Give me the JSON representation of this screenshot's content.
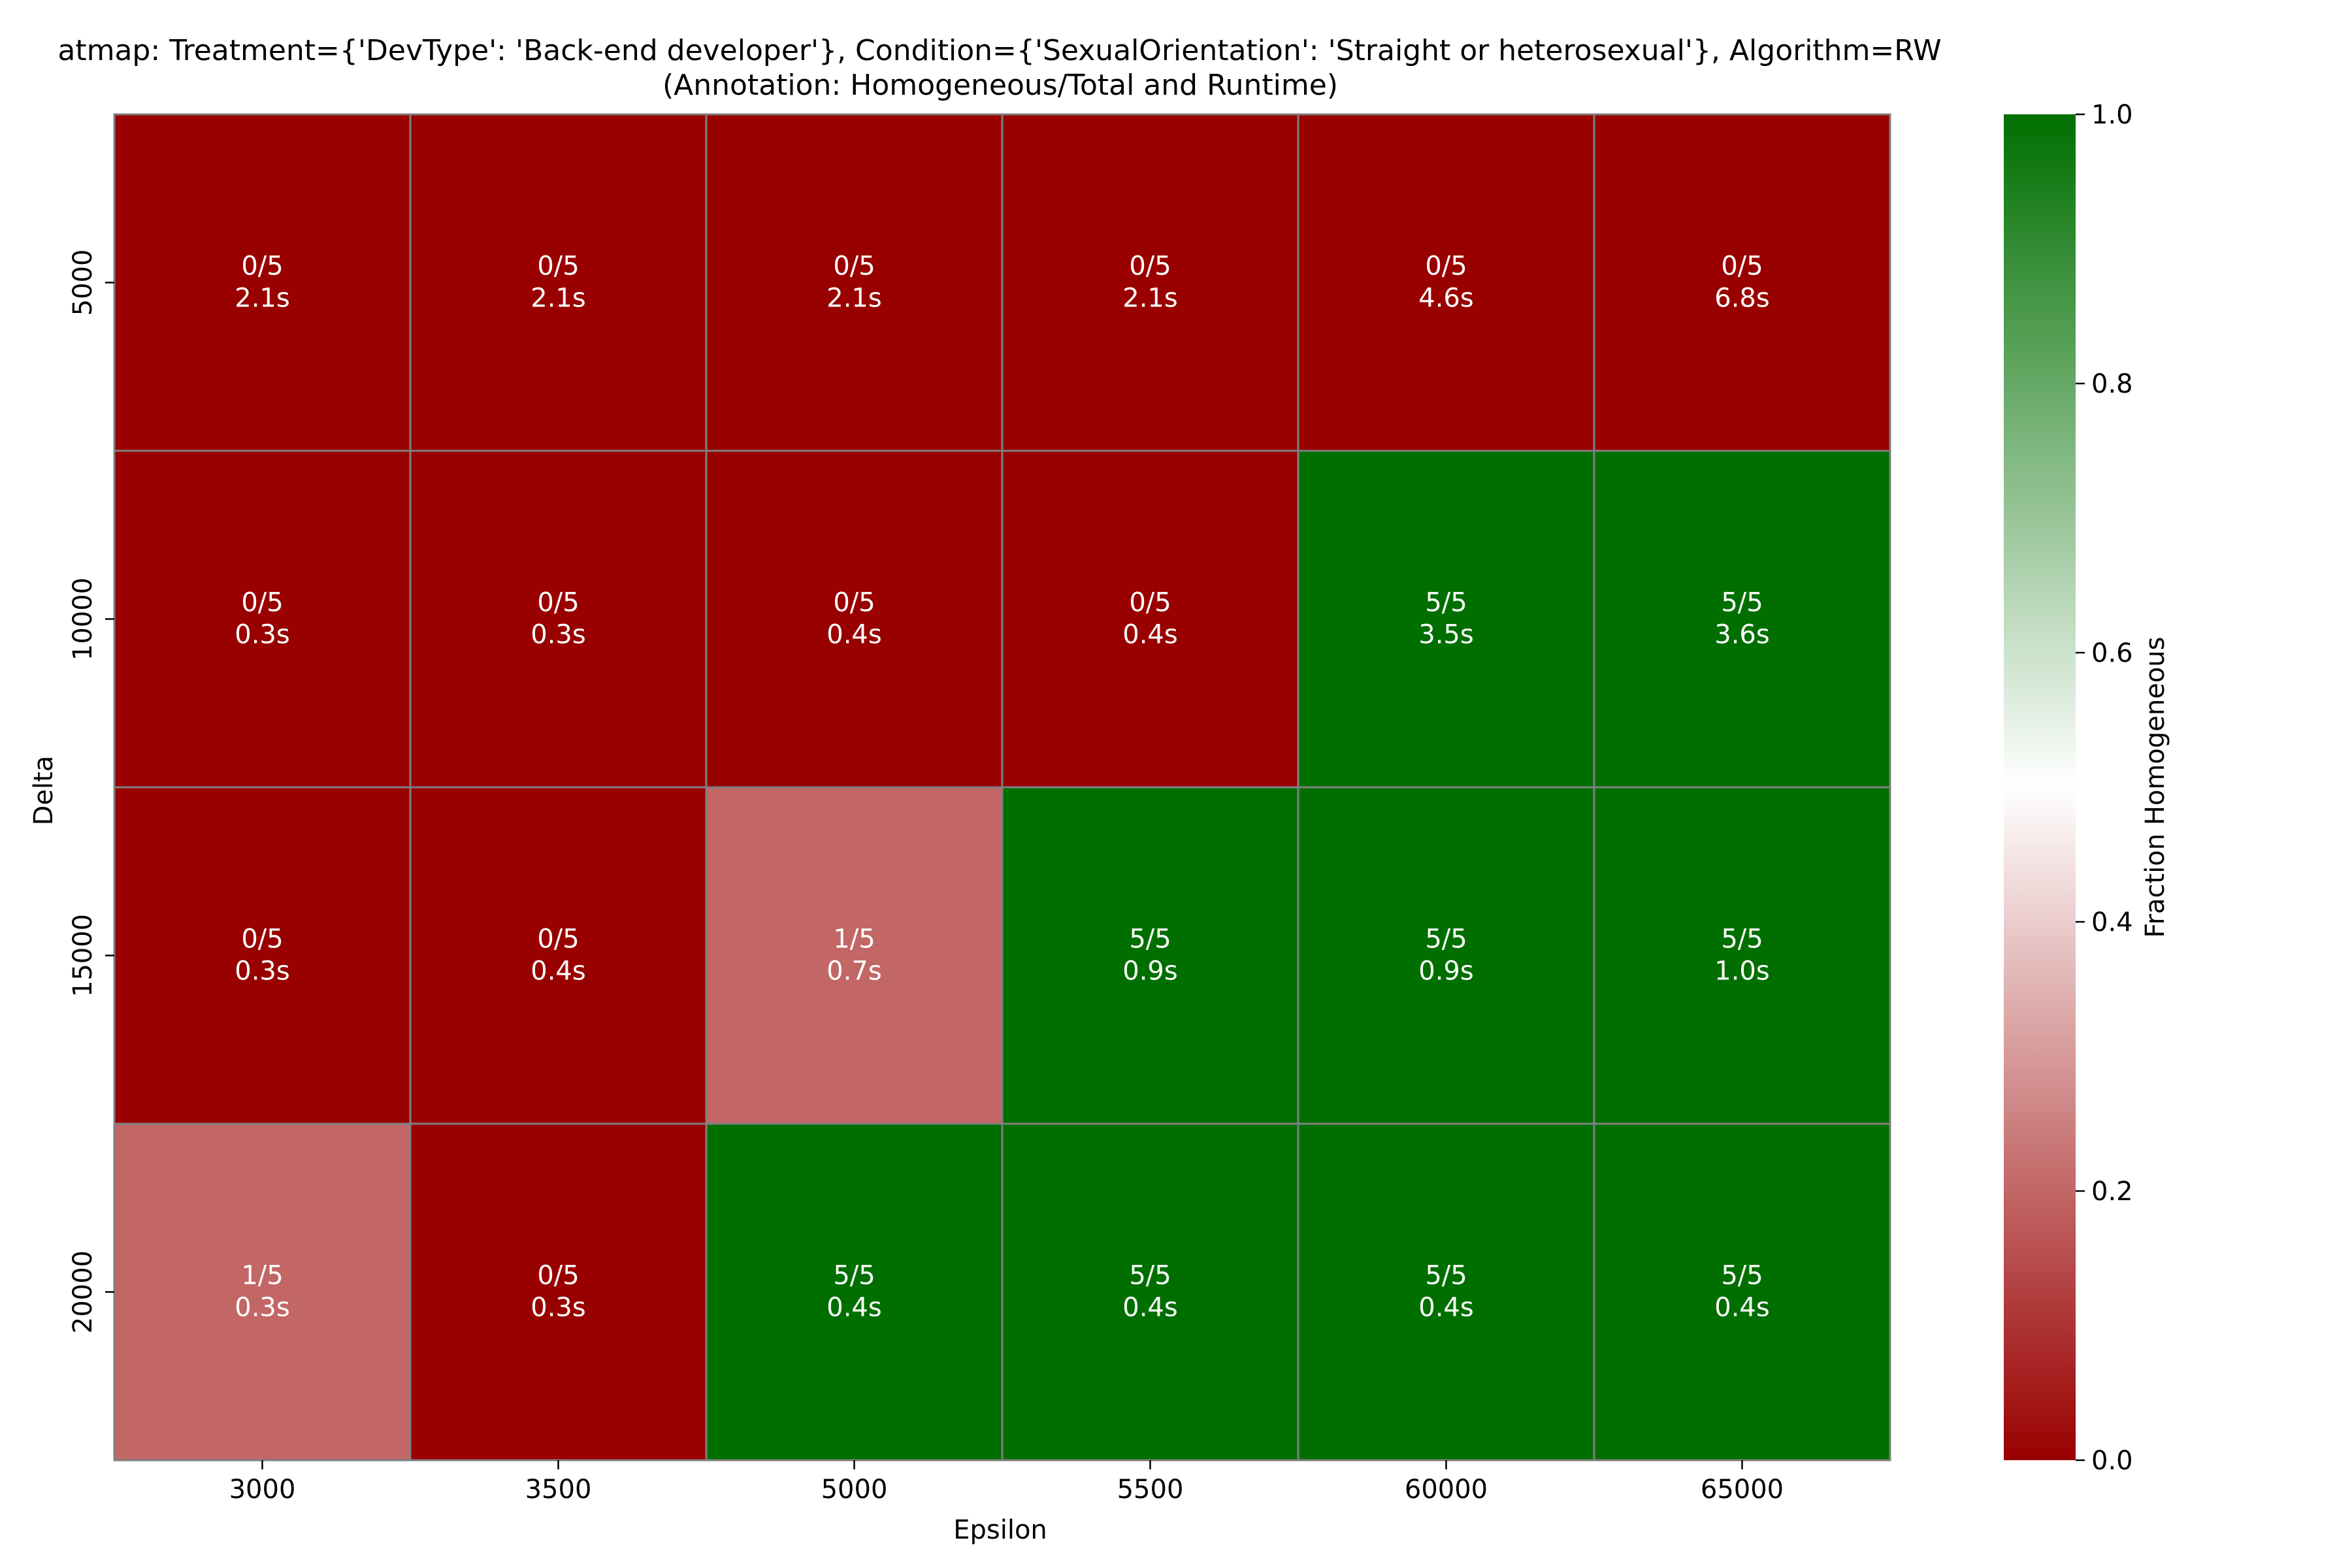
{
  "chart_data": {
    "type": "heatmap",
    "title": "atmap: Treatment={'DevType': 'Back-end developer'}, Condition={'SexualOrientation': 'Straight or heterosexual'}, Algorithm=RW",
    "subtitle": "(Annotation: Homogeneous/Total and Runtime)",
    "xlabel": "Epsilon",
    "ylabel": "Delta",
    "x_categories": [
      "3000",
      "3500",
      "5000",
      "5500",
      "60000",
      "65000"
    ],
    "y_categories": [
      "5000",
      "10000",
      "15000",
      "20000"
    ],
    "values": [
      [
        0.0,
        0.0,
        0.0,
        0.0,
        0.0,
        0.0
      ],
      [
        0.0,
        0.0,
        0.0,
        0.0,
        1.0,
        1.0
      ],
      [
        0.0,
        0.0,
        0.2,
        1.0,
        1.0,
        1.0
      ],
      [
        0.2,
        0.0,
        1.0,
        1.0,
        1.0,
        1.0
      ]
    ],
    "annotations": [
      [
        [
          "0/5",
          "2.1s"
        ],
        [
          "0/5",
          "2.1s"
        ],
        [
          "0/5",
          "2.1s"
        ],
        [
          "0/5",
          "2.1s"
        ],
        [
          "0/5",
          "4.6s"
        ],
        [
          "0/5",
          "6.8s"
        ]
      ],
      [
        [
          "0/5",
          "0.3s"
        ],
        [
          "0/5",
          "0.3s"
        ],
        [
          "0/5",
          "0.4s"
        ],
        [
          "0/5",
          "0.4s"
        ],
        [
          "5/5",
          "3.5s"
        ],
        [
          "5/5",
          "3.6s"
        ]
      ],
      [
        [
          "0/5",
          "0.3s"
        ],
        [
          "0/5",
          "0.4s"
        ],
        [
          "1/5",
          "0.7s"
        ],
        [
          "5/5",
          "0.9s"
        ],
        [
          "5/5",
          "0.9s"
        ],
        [
          "5/5",
          "1.0s"
        ]
      ],
      [
        [
          "1/5",
          "0.3s"
        ],
        [
          "0/5",
          "0.3s"
        ],
        [
          "5/5",
          "0.4s"
        ],
        [
          "5/5",
          "0.4s"
        ],
        [
          "5/5",
          "0.4s"
        ],
        [
          "5/5",
          "0.4s"
        ]
      ]
    ],
    "colorbar": {
      "label": "Fraction Homogeneous",
      "range": [
        0.0,
        1.0
      ],
      "ticks": [
        "0.0",
        "0.2",
        "0.4",
        "0.6",
        "0.8",
        "1.0"
      ],
      "colors": [
        "#990000",
        "#ffffff",
        "#006f00"
      ]
    },
    "cell_colors": {
      "0.0": "#990000",
      "0.2": "#c26666",
      "1.0": "#006f00"
    },
    "grid_color": "#808080",
    "annotation_color": "#ffffff"
  }
}
